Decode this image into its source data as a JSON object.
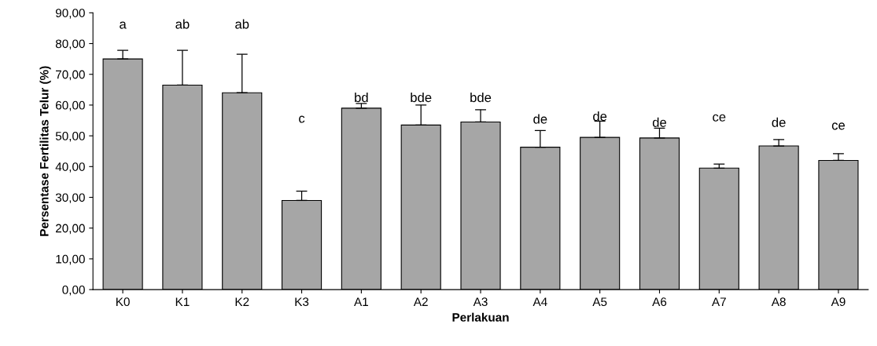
{
  "chart_data": {
    "type": "bar",
    "xlabel": "Perlakuan",
    "ylabel": "Persentase Fertilitas Telur (%)",
    "categories": [
      "K0",
      "K1",
      "K2",
      "K3",
      "A1",
      "A2",
      "A3",
      "A4",
      "A5",
      "A6",
      "A7",
      "A8",
      "A9"
    ],
    "values": [
      75.0,
      66.5,
      64.0,
      29.0,
      59.0,
      53.5,
      54.5,
      46.3,
      49.5,
      49.3,
      39.5,
      46.7,
      42.0
    ],
    "errors": [
      [
        75.0,
        77.8
      ],
      [
        66.5,
        77.8
      ],
      [
        64.0,
        76.5
      ],
      [
        29.0,
        32.0
      ],
      [
        59.0,
        60.5
      ],
      [
        53.5,
        60.0
      ],
      [
        54.5,
        58.5
      ],
      [
        46.3,
        51.7
      ],
      [
        49.5,
        54.8
      ],
      [
        49.3,
        52.5
      ],
      [
        39.5,
        40.8
      ],
      [
        46.7,
        48.8
      ],
      [
        42.0,
        44.2
      ]
    ],
    "color": "#a6a6a6",
    "ylim": [
      0,
      90
    ],
    "yticks": [
      {
        "value": 0,
        "label": "0,00"
      },
      {
        "value": 10,
        "label": "10,00"
      },
      {
        "value": 20,
        "label": "20,00"
      },
      {
        "value": 30,
        "label": "30,00"
      },
      {
        "value": 40,
        "label": "40,00"
      },
      {
        "value": 50,
        "label": "50,00"
      },
      {
        "value": 60,
        "label": "60,00"
      },
      {
        "value": 70,
        "label": "70,00"
      },
      {
        "value": 80,
        "label": "80,00"
      },
      {
        "value": 90,
        "label": "90,00"
      }
    ],
    "annotations": [
      "a",
      "ab",
      "ab",
      "c",
      "bd",
      "bde",
      "bde",
      "de",
      "de",
      "de",
      "ce",
      "de",
      "ce"
    ],
    "grid": false,
    "legend": false
  }
}
